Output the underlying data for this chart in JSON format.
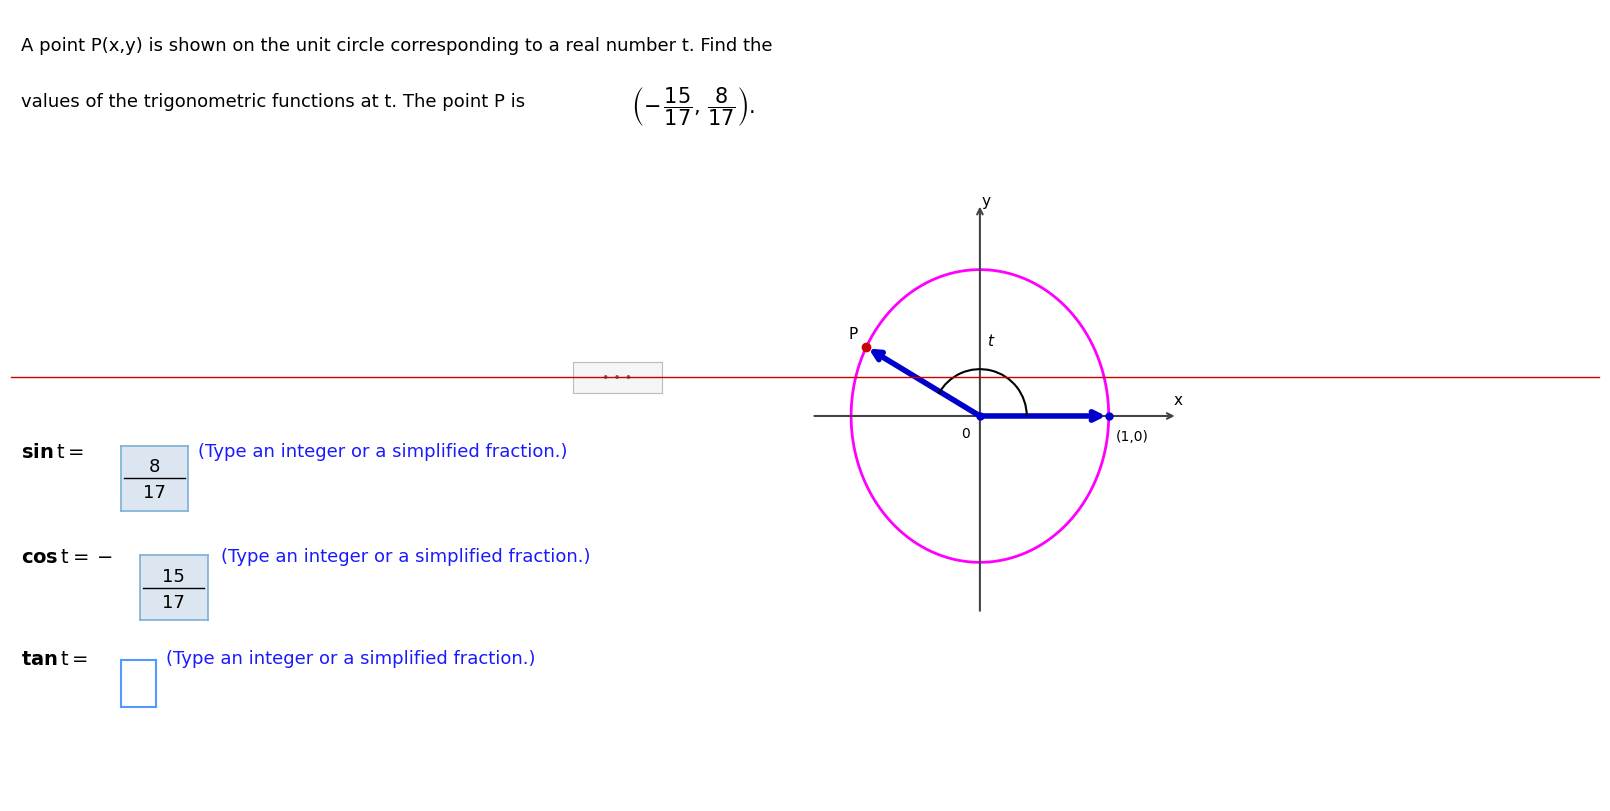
{
  "bg_color": "#ffffff",
  "top_text_line1": "A point P(x,y) is shown on the unit circle corresponding to a real number t. Find the",
  "top_text_line2": "values of the trigonometric functions at t. The point P is",
  "circle_color": "#ff00ff",
  "sin_num": "8",
  "sin_den": "17",
  "cos_num": "15",
  "cos_den": "17",
  "type_text": "(Type an integer or a simplified fraction.)",
  "answer_box_color": "#dce6f1",
  "answer_box_border": "#7bafd4",
  "line_color": "#0000cc",
  "dot_color": "#cc0000",
  "axis_color": "#444444",
  "arc_color": "#000000",
  "text_blue": "#1a1aff",
  "divider_color": "#cc0000",
  "t_label": "t",
  "zero_label": "0",
  "one_label": "(1,0)",
  "p_label": "P",
  "y_label": "y",
  "x_label": "x",
  "font_size_main": 13,
  "font_size_bottom": 14
}
